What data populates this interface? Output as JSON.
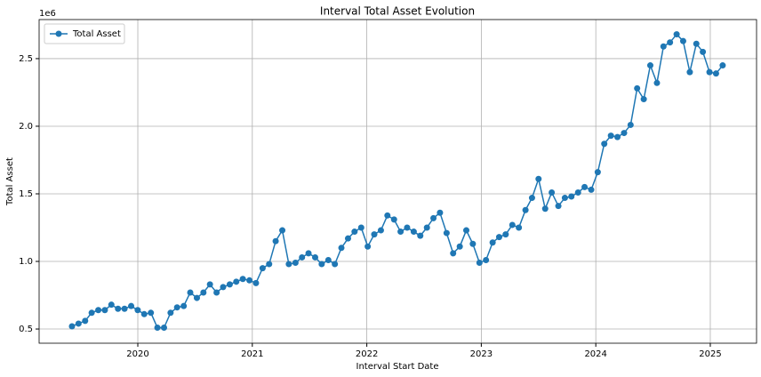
{
  "chart_data": {
    "type": "line",
    "title": "Interval Total Asset Evolution",
    "x_label": "Interval Start Date",
    "y_label": "Total Asset",
    "y_offset_label": "1e6",
    "x": [
      2019.425,
      2019.482,
      2019.54,
      2019.597,
      2019.655,
      2019.712,
      2019.769,
      2019.827,
      2019.884,
      2019.942,
      2019.999,
      2020.056,
      2020.114,
      2020.171,
      2020.229,
      2020.286,
      2020.343,
      2020.401,
      2020.458,
      2020.516,
      2020.573,
      2020.63,
      2020.688,
      2020.745,
      2020.803,
      2020.86,
      2020.917,
      2020.975,
      2021.032,
      2021.09,
      2021.147,
      2021.204,
      2021.262,
      2021.319,
      2021.377,
      2021.434,
      2021.491,
      2021.549,
      2021.606,
      2021.664,
      2021.721,
      2021.778,
      2021.836,
      2021.893,
      2021.951,
      2022.008,
      2022.065,
      2022.123,
      2022.18,
      2022.238,
      2022.295,
      2022.352,
      2022.41,
      2022.467,
      2022.525,
      2022.582,
      2022.639,
      2022.697,
      2022.754,
      2022.812,
      2022.869,
      2022.926,
      2022.984,
      2023.041,
      2023.099,
      2023.156,
      2023.213,
      2023.271,
      2023.328,
      2023.386,
      2023.443,
      2023.5,
      2023.558,
      2023.615,
      2023.673,
      2023.73,
      2023.787,
      2023.845,
      2023.902,
      2023.96,
      2024.017,
      2024.074,
      2024.132,
      2024.189,
      2024.247,
      2024.304,
      2024.361,
      2024.419,
      2024.476,
      2024.534,
      2024.591,
      2024.648,
      2024.706,
      2024.763,
      2024.821,
      2024.878,
      2024.935,
      2024.993,
      2025.05,
      2025.108
    ],
    "series": [
      {
        "name": "Total Asset",
        "color": "#1f77b4",
        "values": [
          0.52,
          0.54,
          0.56,
          0.62,
          0.64,
          0.64,
          0.68,
          0.65,
          0.65,
          0.67,
          0.64,
          0.61,
          0.62,
          0.51,
          0.51,
          0.62,
          0.66,
          0.67,
          0.77,
          0.73,
          0.77,
          0.83,
          0.77,
          0.81,
          0.83,
          0.85,
          0.87,
          0.86,
          0.84,
          0.95,
          0.98,
          1.15,
          1.23,
          0.98,
          0.99,
          1.03,
          1.06,
          1.03,
          0.98,
          1.01,
          0.98,
          1.1,
          1.17,
          1.22,
          1.25,
          1.11,
          1.2,
          1.23,
          1.34,
          1.31,
          1.22,
          1.25,
          1.22,
          1.19,
          1.25,
          1.32,
          1.36,
          1.21,
          1.06,
          1.11,
          1.23,
          1.13,
          0.99,
          1.01,
          1.14,
          1.18,
          1.2,
          1.27,
          1.25,
          1.38,
          1.47,
          1.61,
          1.39,
          1.51,
          1.41,
          1.47,
          1.48,
          1.51,
          1.55,
          1.53,
          1.66,
          1.87,
          1.93,
          1.92,
          1.95,
          2.01,
          2.28,
          2.2,
          2.45,
          2.32,
          2.59,
          2.62,
          2.68,
          2.63,
          2.4,
          2.61,
          2.55,
          2.4,
          2.39,
          2.45
        ]
      }
    ],
    "xlim": [
      2019.138,
      2025.404
    ],
    "xticks": [
      2020,
      2021,
      2022,
      2023,
      2024,
      2025
    ],
    "ylim": [
      0.395,
      2.789
    ],
    "yticks": [
      0.5,
      {
        "value": 1.0,
        "label": "1.0"
      },
      1.5,
      {
        "value": 2.0,
        "label": "2.0"
      },
      2.5
    ],
    "grid": true,
    "legend": "upper left"
  }
}
